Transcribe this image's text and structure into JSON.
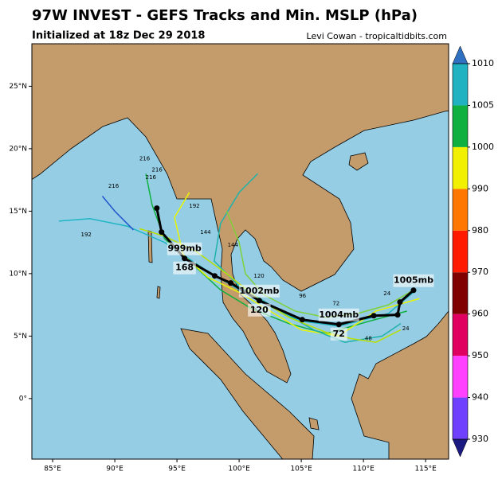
{
  "header": {
    "title": "97W INVEST - GEFS Tracks and Min. MSLP (hPa)",
    "subtitle": "Initialized at 18z Dec 29 2018",
    "credit": "Levi Cowan - tropicaltidbits.com"
  },
  "map": {
    "xlim": [
      83.33,
      116.85
    ],
    "ylim": [
      -4.85,
      28.4
    ],
    "xticks": [
      {
        "value": 85,
        "label": "85°E"
      },
      {
        "value": 90,
        "label": "90°E"
      },
      {
        "value": 95,
        "label": "95°E"
      },
      {
        "value": 100,
        "label": "100°E"
      },
      {
        "value": 105,
        "label": "105°E"
      },
      {
        "value": 110,
        "label": "110°E"
      },
      {
        "value": 115,
        "label": "115°E"
      }
    ],
    "yticks": [
      {
        "value": 0,
        "label": "0°"
      },
      {
        "value": 5,
        "label": "5°N"
      },
      {
        "value": 10,
        "label": "10°N"
      },
      {
        "value": 15,
        "label": "15°N"
      },
      {
        "value": 20,
        "label": "20°N"
      },
      {
        "value": 25,
        "label": "25°N"
      }
    ],
    "ensemble": [
      {
        "color": "#1fb5c3",
        "lon": [
          114,
          112,
          108,
          105,
          102,
          99.5,
          97,
          94,
          91,
          88,
          85.5
        ],
        "lat": [
          8.5,
          6.8,
          5.8,
          6.2,
          7.6,
          9,
          10.5,
          12.5,
          13.8,
          14.4,
          14.2
        ]
      },
      {
        "color": "#10b040",
        "lon": [
          113.5,
          110.5,
          107,
          104,
          101,
          98.5,
          96,
          94,
          93,
          92.5
        ],
        "lat": [
          7,
          6.2,
          5.2,
          6,
          7.2,
          8.7,
          11,
          12.8,
          15.5,
          18
        ]
      },
      {
        "color": "#e8f500",
        "lon": [
          114.5,
          111,
          108,
          105,
          102.5,
          100,
          97.5,
          95.5,
          94.8,
          96
        ],
        "lat": [
          8,
          7,
          5,
          5.5,
          7,
          8.5,
          9.7,
          11.5,
          14.5,
          16.5
        ]
      },
      {
        "color": "#20b2aa",
        "lon": [
          113,
          111.5,
          108.5,
          106,
          103,
          100,
          98,
          98.5,
          100,
          101.5
        ],
        "lat": [
          6,
          5,
          4.5,
          5.5,
          7.2,
          9,
          11,
          14,
          16.5,
          18
        ]
      },
      {
        "color": "#7fd03a",
        "lon": [
          114.2,
          112,
          109.5,
          107,
          104.5,
          102,
          100.5,
          100,
          99
        ],
        "lat": [
          8.8,
          7.5,
          6.8,
          6.5,
          7,
          8.3,
          10,
          12.5,
          15
        ]
      },
      {
        "color": "#2255cc",
        "lon": [
          91.5,
          90,
          89
        ],
        "lat": [
          13.5,
          15,
          16.2
        ]
      },
      {
        "color": "#b8e000",
        "lon": [
          113,
          111,
          109,
          107,
          104,
          101.5,
          99,
          96.5,
          94,
          92
        ],
        "lat": [
          5.5,
          4.5,
          4.8,
          5.3,
          6.5,
          8,
          10,
          11.8,
          13,
          13.6
        ]
      }
    ],
    "hour_labels": [
      {
        "text": "216",
        "lon": 92.4,
        "lat": 19.2
      },
      {
        "text": "216",
        "lon": 93.4,
        "lat": 18.3
      },
      {
        "text": "216",
        "lon": 92.9,
        "lat": 17.7
      },
      {
        "text": "216",
        "lon": 89.9,
        "lat": 17.0
      },
      {
        "text": "192",
        "lon": 87.7,
        "lat": 13.1
      },
      {
        "text": "192",
        "lon": 96.4,
        "lat": 15.4
      },
      {
        "text": "144",
        "lon": 97.3,
        "lat": 13.3
      },
      {
        "text": "144",
        "lon": 99.5,
        "lat": 12.3
      },
      {
        "text": "120",
        "lon": 101.6,
        "lat": 9.8
      },
      {
        "text": "96",
        "lon": 105.1,
        "lat": 8.2
      },
      {
        "text": "72",
        "lon": 107.8,
        "lat": 7.6
      },
      {
        "text": "48",
        "lon": 110.4,
        "lat": 4.8
      },
      {
        "text": "24",
        "lon": 113.4,
        "lat": 5.6
      },
      {
        "text": "24",
        "lon": 111.9,
        "lat": 8.4
      }
    ],
    "mean_track": [
      {
        "lon": 114.03,
        "lat": 8.67,
        "pressure": "1005mb"
      },
      {
        "lon": 112.94,
        "lat": 7.72
      },
      {
        "lon": 112.75,
        "lat": 6.7
      },
      {
        "lon": 110.83,
        "lat": 6.63
      },
      {
        "lon": 108.02,
        "lat": 5.93,
        "pressure": "1004mb",
        "hour": "72"
      },
      {
        "lon": 105.08,
        "lat": 6.31
      },
      {
        "lon": 101.62,
        "lat": 7.84,
        "pressure": "1002mb",
        "hour": "120"
      },
      {
        "lon": 99.32,
        "lat": 9.25
      },
      {
        "lon": 98.04,
        "lat": 9.82
      },
      {
        "lon": 95.61,
        "lat": 11.22,
        "pressure": "999mb",
        "hour": "168"
      },
      {
        "lon": 93.76,
        "lat": 13.33
      },
      {
        "lon": 93.38,
        "lat": 15.24
      }
    ]
  },
  "colorbar": {
    "levels": [
      930,
      940,
      950,
      960,
      970,
      980,
      990,
      1000,
      1005,
      1010
    ],
    "colors": [
      "#7040ff",
      "#ff40ff",
      "#e00060",
      "#800000",
      "#ff1a00",
      "#ff7700",
      "#f0f000",
      "#10b040",
      "#20b2c0"
    ],
    "under_color": "#1a1a80",
    "over_color": "#3070c0"
  }
}
